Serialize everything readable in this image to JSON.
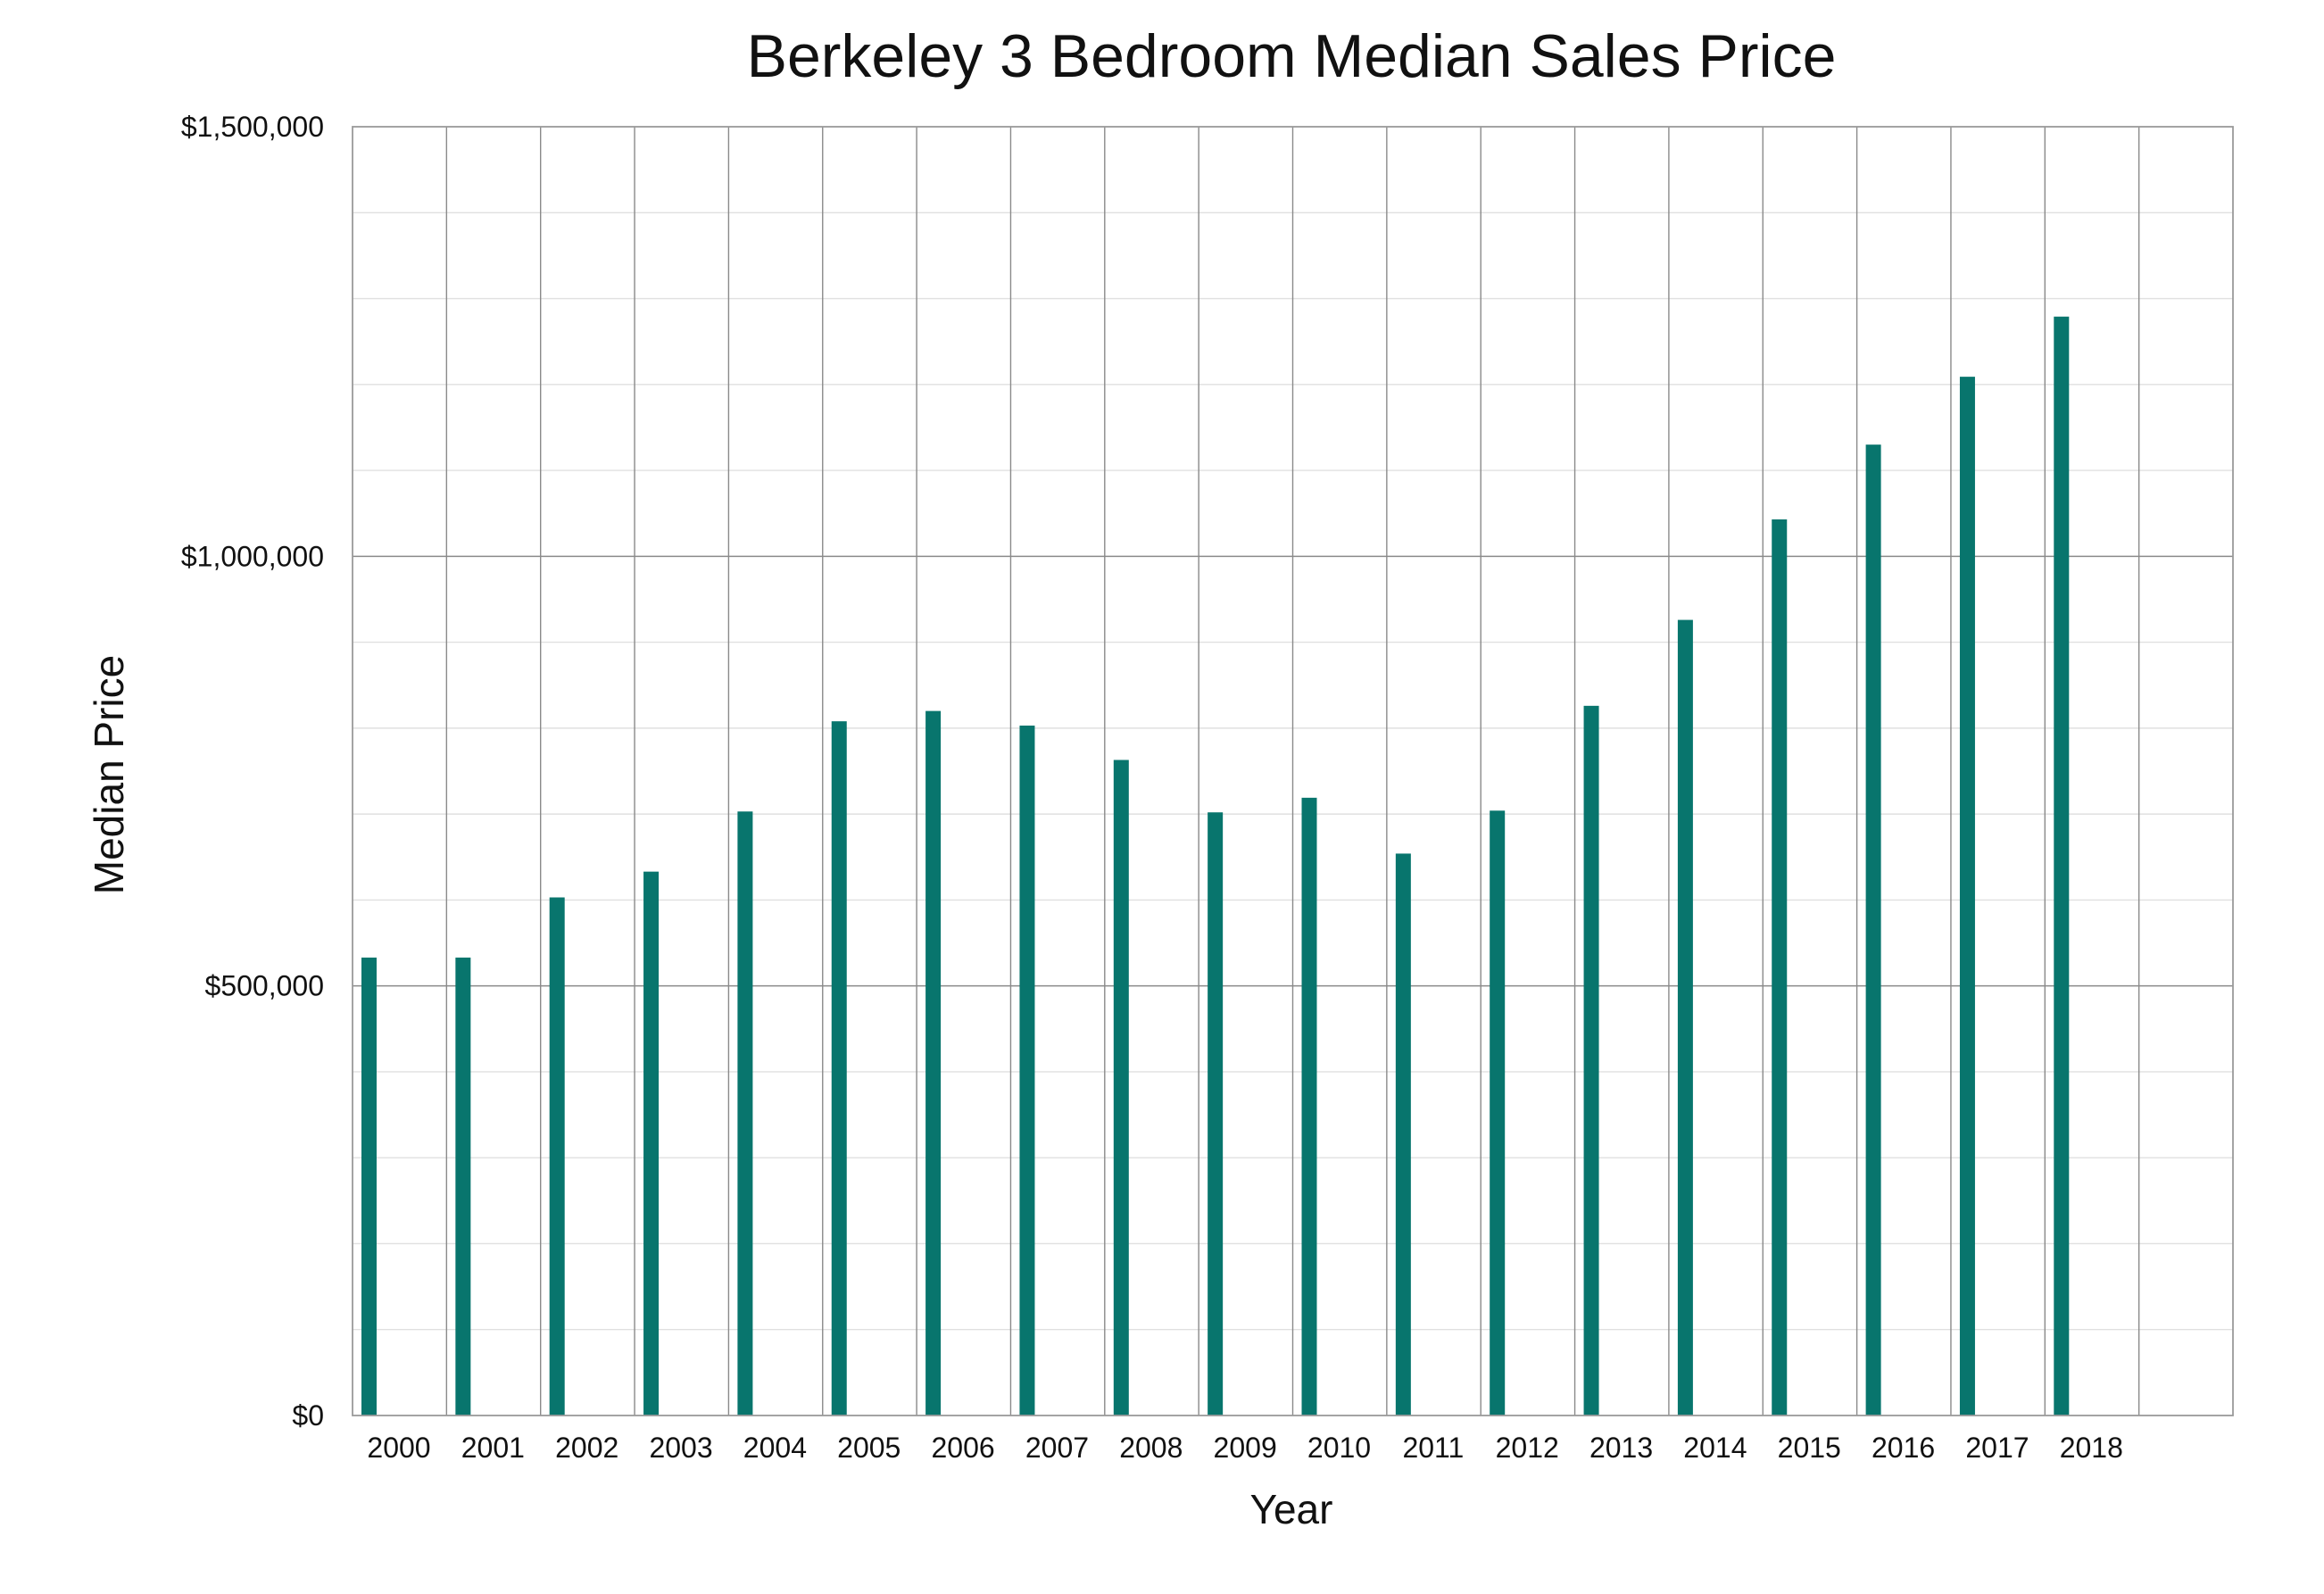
{
  "chart_data": {
    "type": "bar",
    "title": "Berkeley 3 Bedroom Median Sales Price",
    "xlabel": "Year",
    "ylabel": "Median Price",
    "categories": [
      "2000",
      "2001",
      "2002",
      "2003",
      "2004",
      "2005",
      "2006",
      "2007",
      "2008",
      "2009",
      "2010",
      "2011",
      "2012",
      "2013",
      "2014",
      "2015",
      "2016",
      "2017",
      "2018",
      ""
    ],
    "values": [
      533000,
      533000,
      603000,
      633000,
      703000,
      808000,
      820000,
      803000,
      763000,
      702000,
      719000,
      654000,
      704000,
      826000,
      926000,
      1043000,
      1130000,
      1209000,
      1279000,
      null
    ],
    "ylim": [
      0,
      1500000
    ],
    "ytick_values": [
      0,
      500000,
      1000000,
      1500000
    ],
    "ytick_labels": [
      "$0",
      "$500,000",
      "$1,000,000",
      "$1,500,000"
    ],
    "minor_gridline_step": 100000,
    "grid": true,
    "colors": {
      "bar": "#08756D",
      "major_grid": "#8A8A8A",
      "minor_grid": "#E0E0E0",
      "frame": "#9A9A9A",
      "text": "#111111"
    }
  }
}
